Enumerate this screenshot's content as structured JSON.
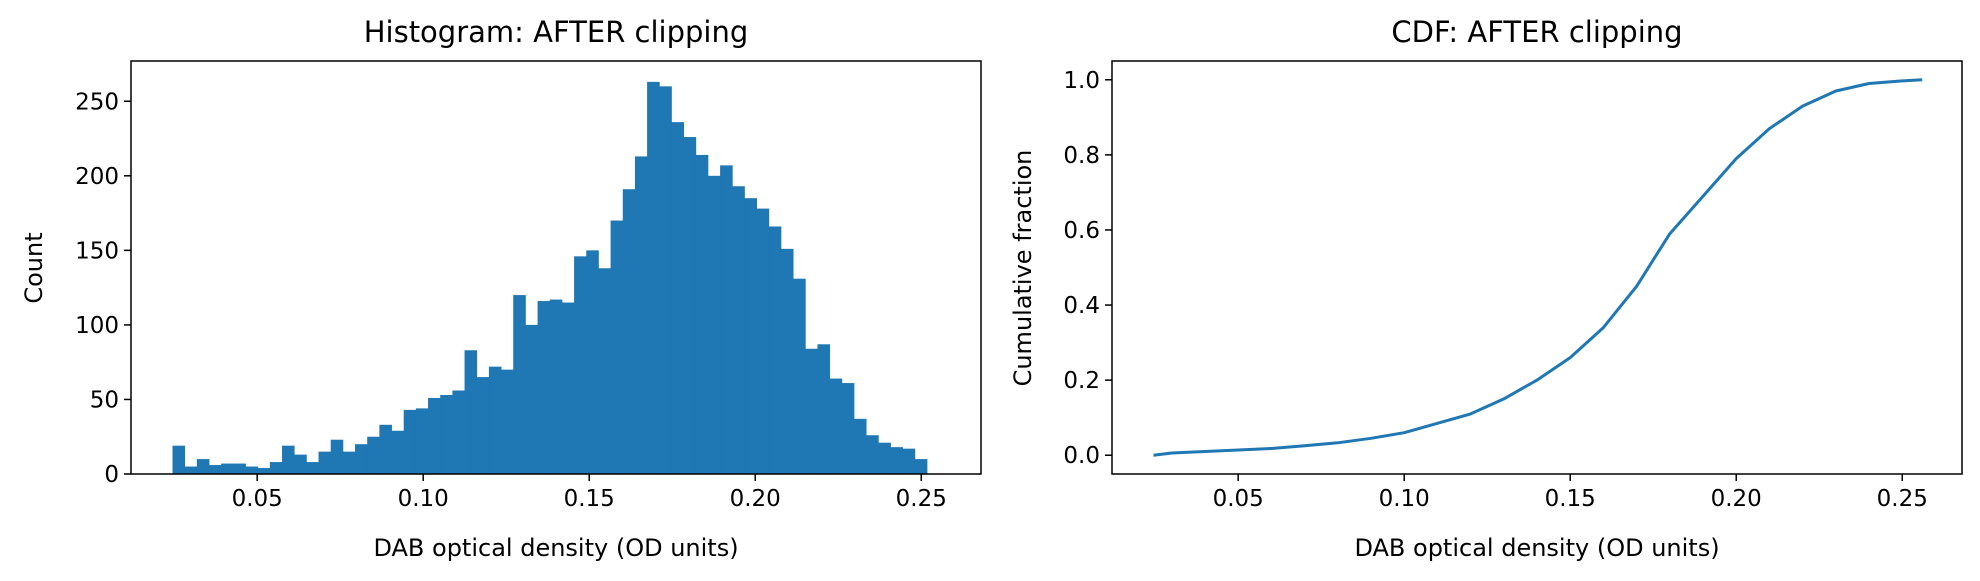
{
  "colors": {
    "series": "#1f77b4",
    "axes": "#000000"
  },
  "chart_data": [
    {
      "type": "bar",
      "title": "Histogram: AFTER clipping",
      "xlabel": "DAB optical density (OD units)",
      "ylabel": "Count",
      "xlim": [
        0.012,
        0.268
      ],
      "ylim": [
        0,
        277
      ],
      "xticks": [
        0.05,
        0.1,
        0.15,
        0.2,
        0.25
      ],
      "xtick_labels": [
        "0.05",
        "0.10",
        "0.15",
        "0.20",
        "0.25"
      ],
      "yticks": [
        0,
        50,
        100,
        150,
        200,
        250
      ],
      "ytick_labels": [
        "0",
        "50",
        "100",
        "150",
        "200",
        "250"
      ],
      "grid": false,
      "bin_start": 0.0245,
      "bin_width": 0.003665,
      "values": [
        19,
        5,
        10,
        6,
        7,
        7,
        5,
        4,
        8,
        19,
        13,
        8,
        15,
        23,
        15,
        20,
        25,
        33,
        29,
        43,
        44,
        51,
        53,
        56,
        83,
        65,
        72,
        70,
        120,
        100,
        116,
        117,
        115,
        146,
        150,
        138,
        170,
        191,
        213,
        263,
        260,
        236,
        226,
        214,
        200,
        207,
        193,
        185,
        178,
        166,
        151,
        131,
        84,
        87,
        64,
        61,
        37,
        26,
        21,
        18,
        17,
        10
      ]
    },
    {
      "type": "line",
      "title": "CDF: AFTER clipping",
      "xlabel": "DAB optical density (OD units)",
      "ylabel": "Cumulative fraction",
      "xlim": [
        0.012,
        0.268
      ],
      "ylim": [
        -0.05,
        1.05
      ],
      "xticks": [
        0.05,
        0.1,
        0.15,
        0.2,
        0.25
      ],
      "xtick_labels": [
        "0.05",
        "0.10",
        "0.15",
        "0.20",
        "0.25"
      ],
      "yticks": [
        0,
        0.2,
        0.4,
        0.6,
        0.8,
        1.0
      ],
      "ytick_labels": [
        "0.0",
        "0.2",
        "0.4",
        "0.6",
        "0.8",
        "1.0"
      ],
      "grid": false,
      "x": [
        0.0245,
        0.03,
        0.04,
        0.05,
        0.06,
        0.07,
        0.08,
        0.09,
        0.1,
        0.11,
        0.12,
        0.13,
        0.14,
        0.15,
        0.16,
        0.17,
        0.18,
        0.19,
        0.2,
        0.21,
        0.22,
        0.23,
        0.24,
        0.25,
        0.256
      ],
      "y": [
        0.0,
        0.006,
        0.01,
        0.014,
        0.018,
        0.025,
        0.033,
        0.045,
        0.06,
        0.085,
        0.11,
        0.15,
        0.2,
        0.26,
        0.34,
        0.45,
        0.59,
        0.69,
        0.79,
        0.87,
        0.93,
        0.97,
        0.99,
        0.997,
        1.0
      ]
    }
  ]
}
